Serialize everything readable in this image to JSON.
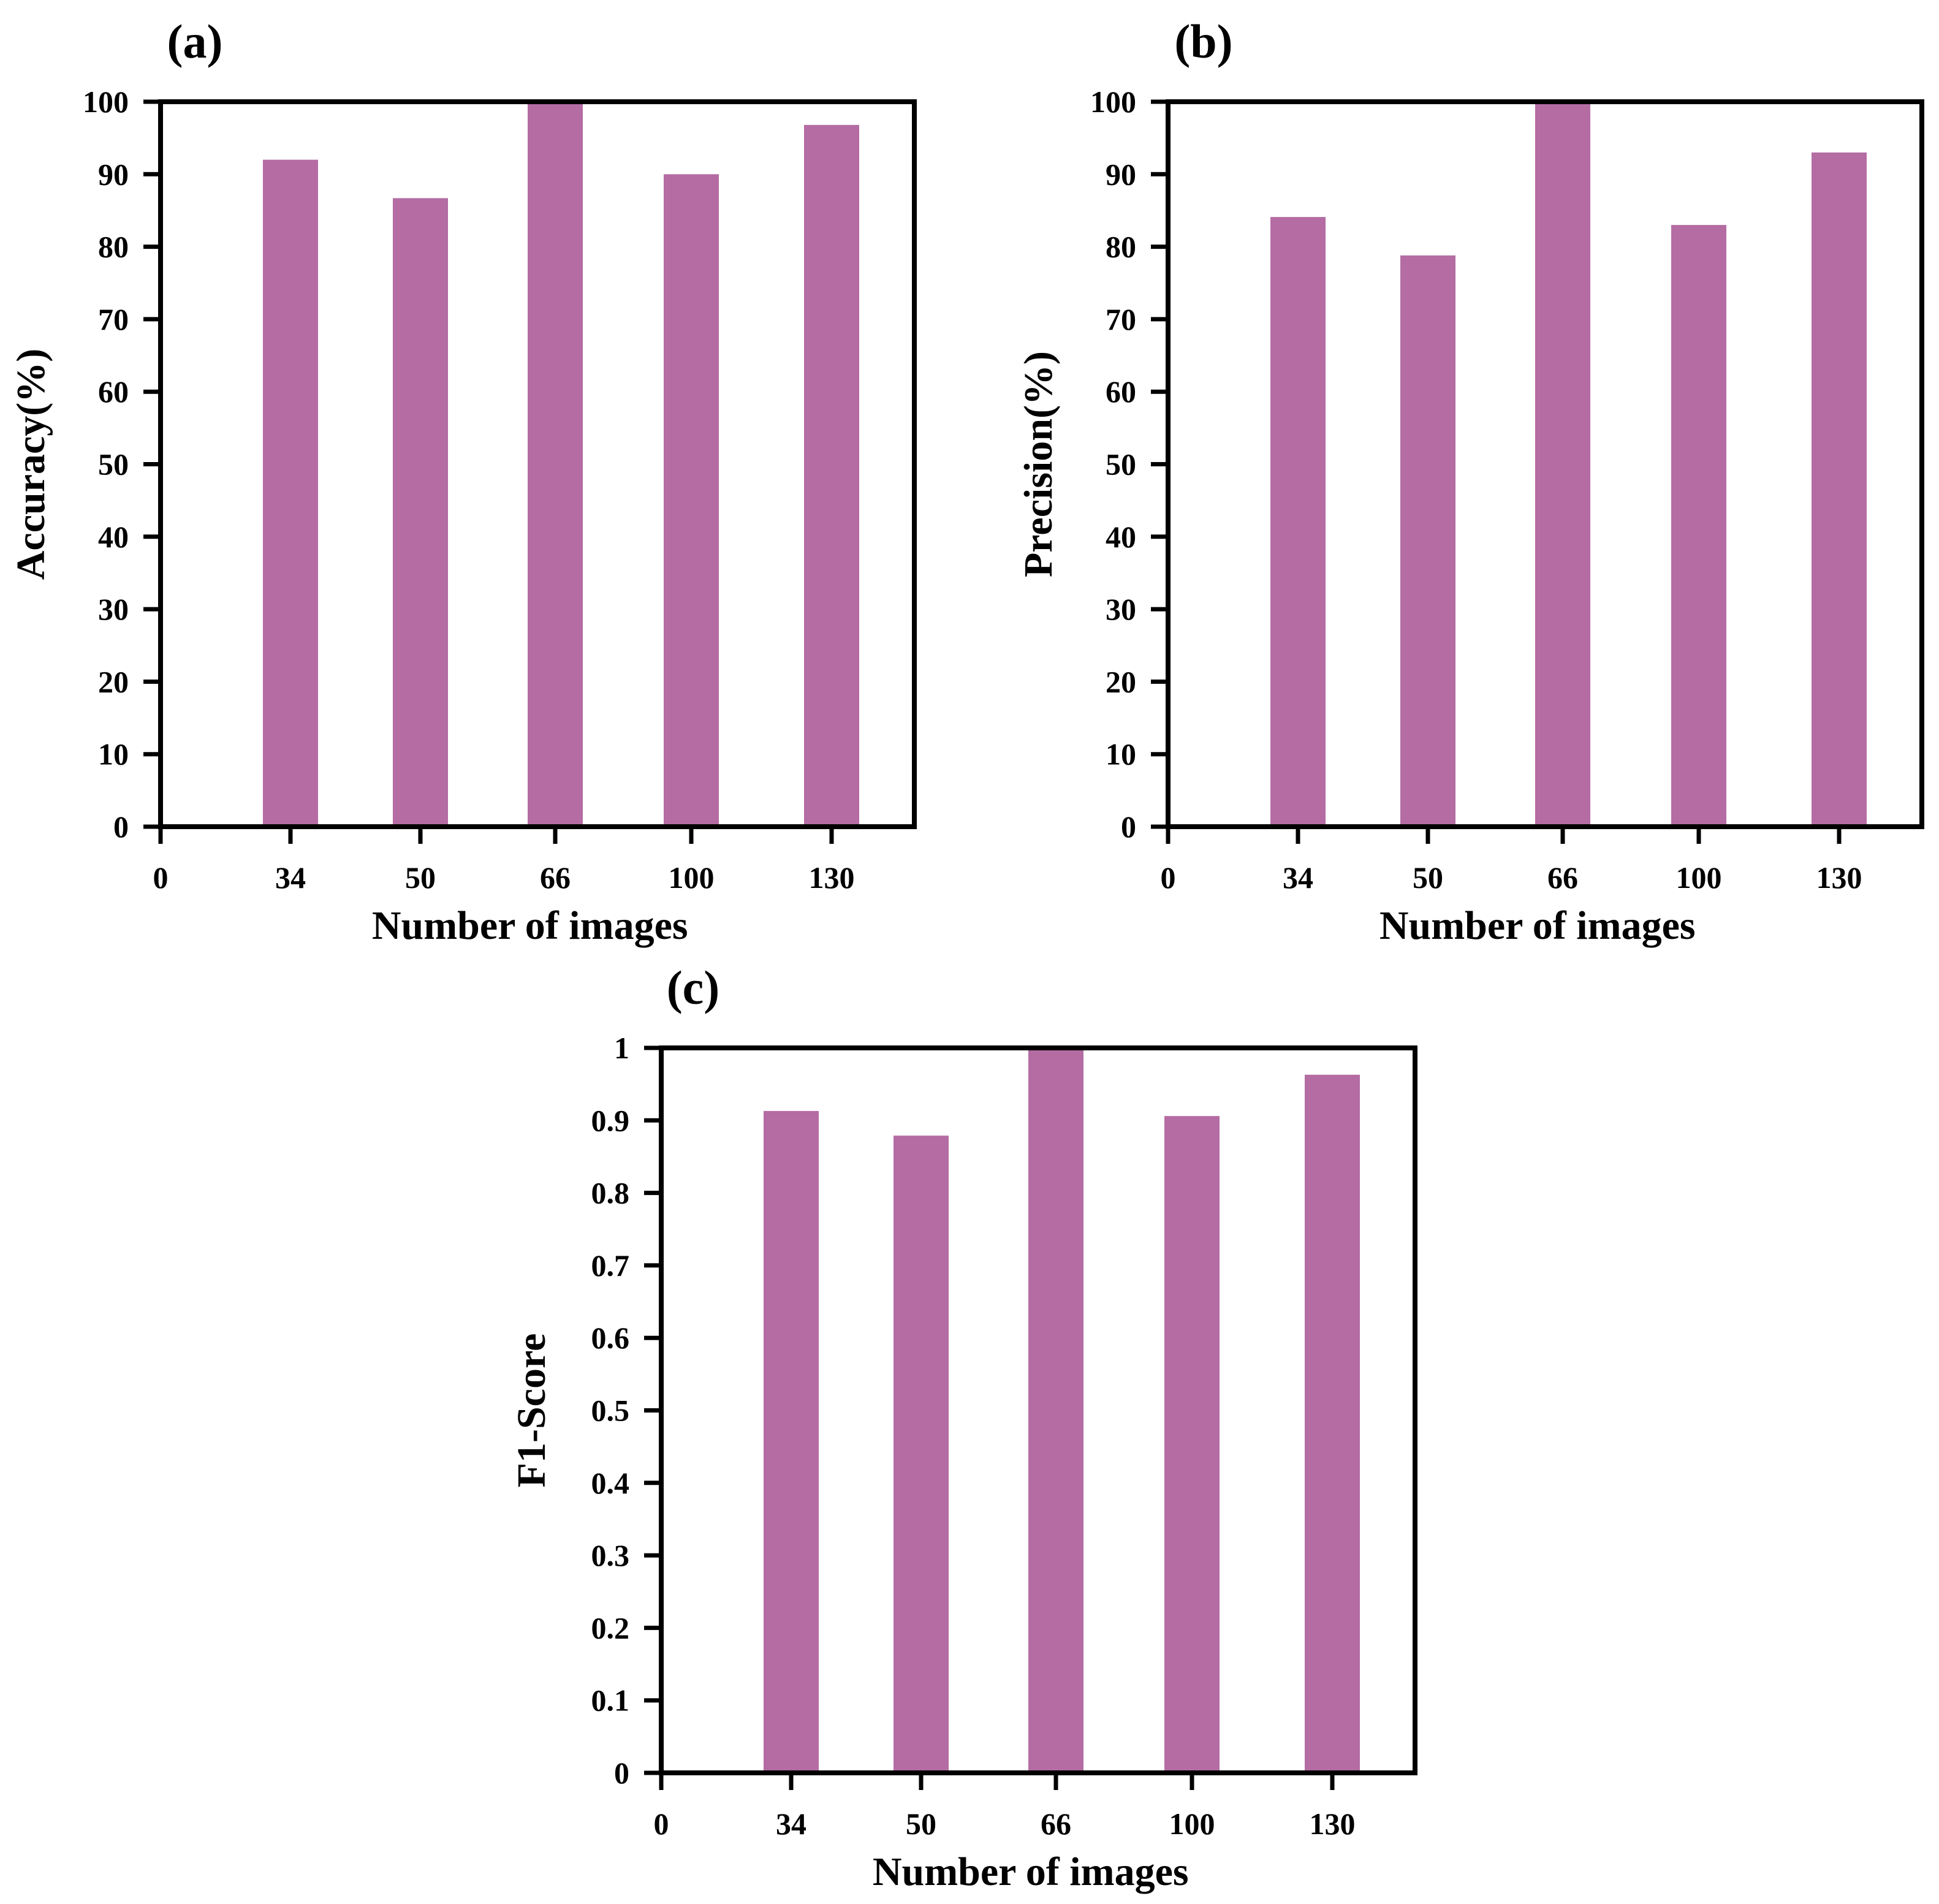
{
  "bar_color": "#b46ca3",
  "chart_data": [
    {
      "type": "bar",
      "panel_label": "(a)",
      "title": "",
      "xlabel": "Number of images",
      "ylabel": "Accuracy(%)",
      "categories": [
        "34",
        "50",
        "66",
        "100",
        "130"
      ],
      "origin_tick": "0",
      "values": [
        92,
        86.7,
        100,
        90,
        96.8
      ],
      "ylim": [
        0,
        100
      ],
      "yticks": [
        "0",
        "10",
        "20",
        "30",
        "40",
        "50",
        "60",
        "70",
        "80",
        "90",
        "100"
      ],
      "grid": false
    },
    {
      "type": "bar",
      "panel_label": "(b)",
      "title": "",
      "xlabel": "Number of images",
      "ylabel": "Precision(%)",
      "categories": [
        "34",
        "50",
        "66",
        "100",
        "130"
      ],
      "origin_tick": "0",
      "values": [
        84.1,
        78.8,
        100,
        83,
        93
      ],
      "ylim": [
        0,
        100
      ],
      "yticks": [
        "0",
        "10",
        "20",
        "30",
        "40",
        "50",
        "60",
        "70",
        "80",
        "90",
        "100"
      ],
      "grid": false
    },
    {
      "type": "bar",
      "panel_label": "(c)",
      "title": "",
      "xlabel": "Number of images",
      "ylabel": "F1-Score",
      "categories": [
        "34",
        "50",
        "66",
        "100",
        "130"
      ],
      "origin_tick": "0",
      "values": [
        0.913,
        0.879,
        1,
        0.906,
        0.963
      ],
      "ylim": [
        0,
        1
      ],
      "yticks": [
        "0",
        "0.1",
        "0.2",
        "0.3",
        "0.4",
        "0.5",
        "0.6",
        "0.7",
        "0.8",
        "0.9",
        "1"
      ],
      "grid": false
    }
  ]
}
